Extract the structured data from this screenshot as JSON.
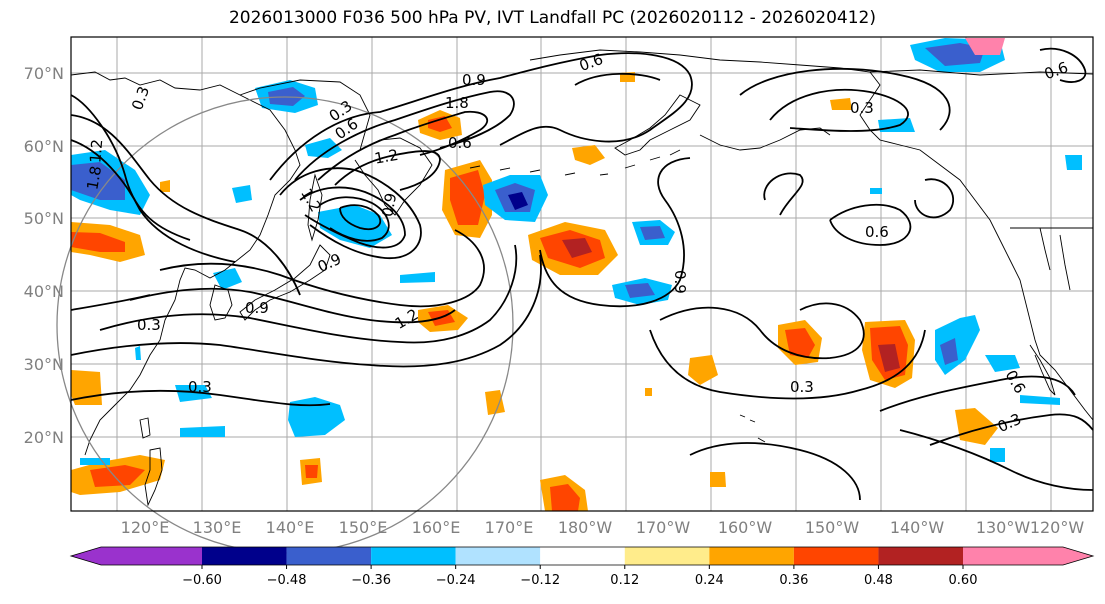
{
  "title": "2026013000 F036 500 hPa PV, IVT Landfall PC (2026020112 - 2026020412)",
  "lat_labels": [
    "70°N",
    "60°N",
    "50°N",
    "40°N",
    "30°N",
    "20°N"
  ],
  "lon_labels": [
    "120°E",
    "130°E",
    "140°E",
    "150°E",
    "160°E",
    "170°E",
    "180°W",
    "170°W",
    "160°W",
    "150°W",
    "140°W",
    "130°W",
    "120°W"
  ],
  "colorbar": {
    "ticks": [
      "−0.60",
      "−0.48",
      "−0.36",
      "−0.24",
      "−0.12",
      "0.12",
      "0.24",
      "0.36",
      "0.48",
      "0.60"
    ],
    "colors": [
      "#9a32cd",
      "#00008b",
      "#3a5fcd",
      "#00bfff",
      "#b0e2ff",
      "#ffffff",
      "#ffec8b",
      "#ffa500",
      "#ff4500",
      "#b22222",
      "#ff82ab"
    ]
  },
  "contour_labels": [
    "0.3",
    "1.2",
    "1.8",
    "0.6",
    "0.9",
    "1.8",
    "1.2",
    "0.6",
    "1.2",
    "0.9",
    "0.9",
    "0.6",
    "0.3",
    "0.6",
    "0.9",
    "0.3",
    "1.2",
    "0.3",
    "0.3",
    "0.6",
    "0.3",
    "0.6",
    "0.3",
    "0.9"
  ],
  "colors": {
    "grid": "#999999",
    "contour": "#000000",
    "circle": "#888888",
    "coast": "#000000"
  }
}
